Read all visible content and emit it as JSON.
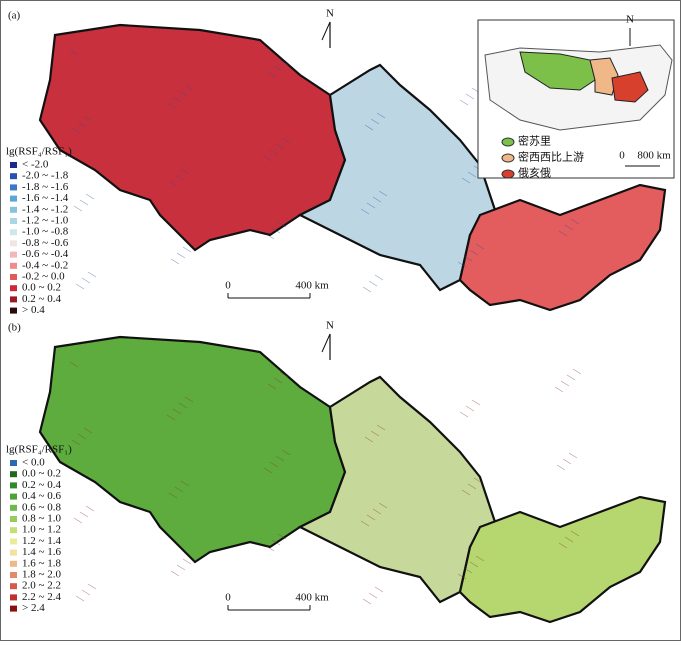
{
  "panels": [
    {
      "label": "(a)",
      "north": "N",
      "scale": {
        "start": "0",
        "end": "400 km"
      },
      "legend": {
        "title": "lg(RSF₄/RSF₁)",
        "items": [
          {
            "label": "< -2.0",
            "color": "#1a2a8a"
          },
          {
            "label": "-2.0 ~ -1.8",
            "color": "#2a4fb0"
          },
          {
            "label": "-1.8 ~ -1.6",
            "color": "#3a78c8"
          },
          {
            "label": "-1.6 ~ -1.4",
            "color": "#5aa6d8"
          },
          {
            "label": "-1.4 ~ -1.2",
            "color": "#86c4dc"
          },
          {
            "label": "-1.2 ~ -1.0",
            "color": "#a9d6e2"
          },
          {
            "label": "-1.0 ~ -0.8",
            "color": "#cfe6ec"
          },
          {
            "label": "-0.8 ~ -0.6",
            "color": "#f0e4e4"
          },
          {
            "label": "-0.6 ~ -0.4",
            "color": "#f2b8b8"
          },
          {
            "label": "-0.4 ~ -0.2",
            "color": "#ec8c8c"
          },
          {
            "label": "-0.2 ~ 0.0",
            "color": "#e05a5a"
          },
          {
            "label": "0.0 ~ 0.2",
            "color": "#cc2a36"
          },
          {
            "label": "0.2 ~ 0.4",
            "color": "#9a1a24"
          },
          {
            "label": "> 0.4",
            "color": "#2a0a0a"
          }
        ]
      },
      "basins": {
        "missouri": "#c9303e",
        "upper_mississippi": "#bcd6e4",
        "ohio": "#e35c5e"
      }
    },
    {
      "label": "(b)",
      "north": "N",
      "scale": {
        "start": "0",
        "end": "400 km"
      },
      "legend": {
        "title": "lg(RSF₄/RSF₁)",
        "items": [
          {
            "label": "< 0.0",
            "color": "#2a6ab0"
          },
          {
            "label": "0.0 ~ 0.2",
            "color": "#1e6a1e"
          },
          {
            "label": "0.2 ~ 0.4",
            "color": "#2e8a2a"
          },
          {
            "label": "0.4 ~ 0.6",
            "color": "#4aa23a"
          },
          {
            "label": "0.6 ~ 0.8",
            "color": "#6cb84a"
          },
          {
            "label": "0.8 ~ 1.0",
            "color": "#98cc5a"
          },
          {
            "label": "1.0 ~ 1.2",
            "color": "#c4de78"
          },
          {
            "label": "1.2 ~ 1.4",
            "color": "#e8ec98"
          },
          {
            "label": "1.4 ~ 1.6",
            "color": "#f4e0a0"
          },
          {
            "label": "1.6 ~ 1.8",
            "color": "#f0b888"
          },
          {
            "label": "1.8 ~ 2.0",
            "color": "#e48a6a"
          },
          {
            "label": "2.0 ~ 2.2",
            "color": "#d45a4a"
          },
          {
            "label": "2.2 ~ 2.4",
            "color": "#c0302e"
          },
          {
            "label": "> 2.4",
            "color": "#8a1010"
          }
        ]
      },
      "basins": {
        "missouri": "#5eac3e",
        "upper_mississippi": "#c6d89a",
        "ohio": "#b6d670"
      }
    }
  ],
  "inset": {
    "north": "N",
    "scale": {
      "start": "0",
      "end": "800 km"
    },
    "legend": [
      {
        "label": "密苏里",
        "color": "#7cc04a"
      },
      {
        "label": "密西西比上游",
        "color": "#f0b888"
      },
      {
        "label": "俄亥俄",
        "color": "#d8402e"
      }
    ]
  }
}
